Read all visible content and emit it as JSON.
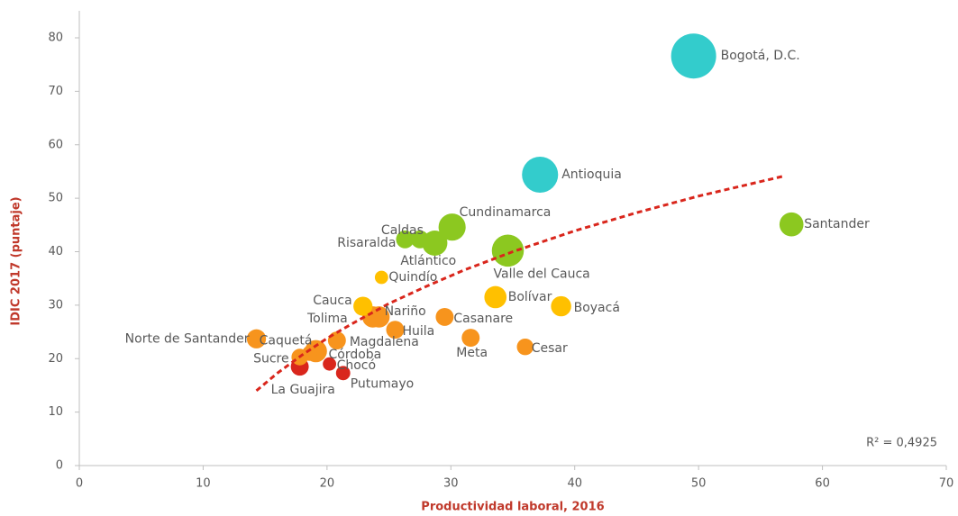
{
  "chart_data": {
    "type": "scatter",
    "x_label": "Productividad laboral, 2016",
    "y_label": "IDIC 2017 (puntaje)",
    "annotation": "R² = 0,4925",
    "labels": [
      "Bogotá, D.C.",
      "Antioquia",
      "Santander",
      "Cundinamarca",
      "Valle del Cauca",
      "Atlántico",
      "Caldas",
      "Risaralda",
      "Quindío",
      "Bolívar",
      "Boyacá",
      "Cauca",
      "Nariño",
      "Tolima",
      "Casanare",
      "Huila",
      "Meta",
      "Cesar",
      "Norte de Santander",
      "Caquetá",
      "Magdalena",
      "Sucre",
      "Córdoba",
      "Chocó",
      "La Guajira",
      "Putumayo"
    ],
    "x": [
      49.6,
      37.2,
      57.5,
      30.1,
      34.6,
      28.7,
      27.5,
      26.3,
      24.4,
      33.6,
      38.9,
      22.9,
      24.2,
      23.7,
      29.5,
      25.5,
      31.6,
      36.0,
      14.3,
      18.6,
      20.8,
      17.8,
      19.1,
      20.2,
      17.8,
      21.3
    ],
    "values": [
      76.6,
      54.4,
      45.1,
      44.6,
      40.2,
      41.6,
      42.3,
      42.3,
      35.2,
      31.5,
      29.8,
      29.8,
      27.8,
      27.8,
      27.8,
      25.4,
      23.9,
      22.2,
      23.7,
      21.0,
      23.4,
      20.3,
      21.4,
      19.0,
      18.5,
      17.3
    ],
    "sizes": [
      100,
      60,
      22,
      30,
      45,
      25,
      10,
      10,
      4,
      18,
      14,
      12,
      16,
      16,
      10,
      10,
      10,
      8,
      12,
      6,
      10,
      8,
      18,
      4,
      10,
      5
    ],
    "colors": [
      "#33cccc",
      "#33cccc",
      "#8cc820",
      "#8cc820",
      "#8cc820",
      "#8cc820",
      "#8cc820",
      "#8cc820",
      "#ffc000",
      "#ffc000",
      "#ffc000",
      "#ffc000",
      "#f7941d",
      "#f7941d",
      "#f7941d",
      "#f7941d",
      "#f7941d",
      "#f7941d",
      "#f7941d",
      "#f7941d",
      "#f7941d",
      "#f7941d",
      "#f7941d",
      "#d9261c",
      "#d9261c",
      "#d9261c"
    ],
    "trend": {
      "color": "#d9261c",
      "x": [
        14.3,
        16,
        18,
        20,
        22,
        25,
        28,
        31,
        35,
        40,
        45,
        50,
        57
      ],
      "values": [
        14.0,
        17.3,
        20.7,
        23.8,
        26.5,
        30.3,
        33.5,
        36.5,
        40.0,
        43.9,
        47.3,
        50.4,
        54.2
      ]
    },
    "xlim": [
      0,
      70
    ],
    "xticks": [
      0,
      10,
      20,
      30,
      40,
      50,
      60,
      70
    ],
    "ylim": [
      0,
      80
    ],
    "yticks": [
      0,
      10,
      20,
      30,
      40,
      50,
      60,
      70,
      80
    ],
    "grid": false
  }
}
